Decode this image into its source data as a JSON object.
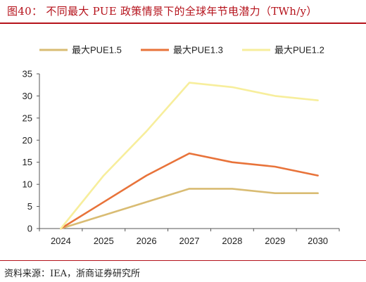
{
  "figure": {
    "title": "图40：  不同最大 PUE 政策情景下的全球年节电潜力（TWh/y）",
    "source": "资料来源：IEA，浙商证券研究所"
  },
  "chart_data": {
    "type": "line",
    "x": [
      2024,
      2025,
      2026,
      2027,
      2028,
      2029,
      2030
    ],
    "ylim": [
      0,
      35
    ],
    "yticks": [
      0,
      5,
      10,
      15,
      20,
      25,
      30,
      35
    ],
    "grid": false,
    "legend_position": "top",
    "series": [
      {
        "name": "最大PUE1.5",
        "color": "#d9bc73",
        "values": [
          0,
          3,
          6,
          9,
          9,
          8,
          8
        ]
      },
      {
        "name": "最大PUE1.3",
        "color": "#e8733a",
        "values": [
          0,
          6,
          12,
          17,
          15,
          14,
          12
        ]
      },
      {
        "name": "最大PUE1.2",
        "color": "#f7ee9c",
        "values": [
          0,
          12,
          22,
          33,
          32,
          30,
          29
        ]
      }
    ]
  }
}
